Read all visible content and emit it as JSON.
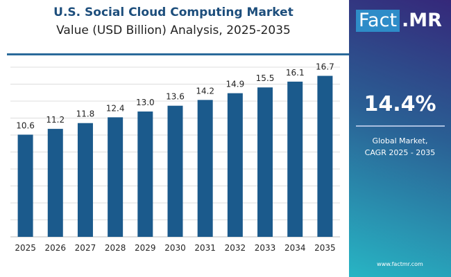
{
  "header": {
    "title": "U.S. Social Cloud Computing Market",
    "subtitle": "Value (USD Billion) Analysis, 2025-2035"
  },
  "panel": {
    "logo_left": "Fact",
    "logo_right": ".MR",
    "cagr_value": "14.4%",
    "cagr_label_1": "Global Market,",
    "cagr_label_2": "CAGR 2025 - 2035",
    "website": "www.factmr.com"
  },
  "colors": {
    "bar": "#1b5a8c",
    "title": "#1d4e7c",
    "grid": "#dddddd"
  },
  "chart_data": {
    "type": "bar",
    "title": "U.S. Social Cloud Computing Market",
    "subtitle": "Value (USD Billion) Analysis, 2025-2035",
    "categories": [
      "2025",
      "2026",
      "2027",
      "2028",
      "2029",
      "2030",
      "2031",
      "2032",
      "2033",
      "2034",
      "2035"
    ],
    "values": [
      10.6,
      11.2,
      11.8,
      12.4,
      13.0,
      13.6,
      14.2,
      14.9,
      15.5,
      16.1,
      16.7
    ],
    "labels": [
      "10.6",
      "11.2",
      "11.8",
      "12.4",
      "13.0",
      "13.6",
      "14.2",
      "14.9",
      "15.5",
      "16.1",
      "16.7"
    ],
    "ylim": [
      0,
      17.6
    ],
    "grid": true,
    "legend": "none"
  }
}
